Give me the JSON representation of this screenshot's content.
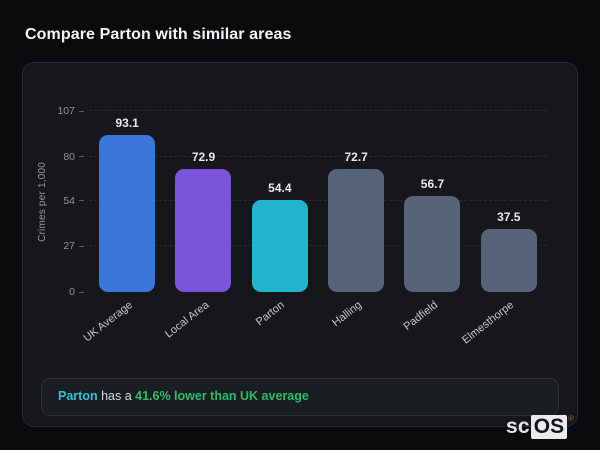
{
  "page": {
    "title": "Compare Parton with similar areas"
  },
  "chart_data": {
    "type": "bar",
    "title": "Compare Parton with similar areas",
    "categories": [
      "UK Average",
      "Local Area",
      "Parton",
      "Halling",
      "Padfield",
      "Elmesthorpe"
    ],
    "values": [
      93.1,
      72.9,
      54.4,
      72.7,
      56.7,
      37.5
    ],
    "bar_colors": [
      "#3b76db",
      "#7a55dc",
      "#22b5cd",
      "#566378",
      "#566378",
      "#566378"
    ],
    "xlabel": "",
    "ylabel": "Crimes per 1,000",
    "yticks": [
      0,
      27,
      54,
      80,
      107
    ],
    "ylim": [
      0,
      107
    ],
    "grid": "dashed horizontal gridlines at y-ticks",
    "legend": "none",
    "value_label_decimals": 1,
    "x_tick_rotation_deg": -38
  },
  "note": {
    "subject": "Parton",
    "middle": " has a ",
    "highlight": "41.6% lower than UK average",
    "subject_color": "#2fc2d4",
    "highlight_color": "#2abd68"
  },
  "logo": {
    "prefix": "sc",
    "suffix": "OS",
    "registered": "®"
  }
}
